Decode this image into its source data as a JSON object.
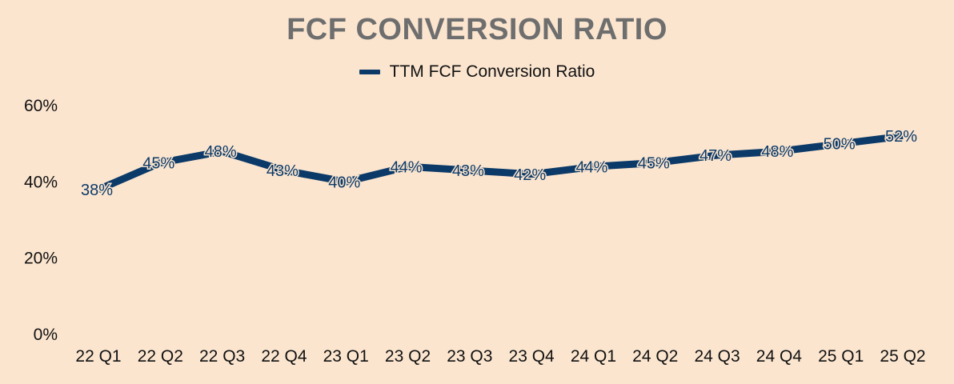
{
  "chart_data": {
    "type": "line",
    "title": "FCF CONVERSION RATIO",
    "xlabel": "",
    "ylabel": "",
    "categories": [
      "22 Q1",
      "22 Q2",
      "22 Q3",
      "22 Q4",
      "23 Q1",
      "23 Q2",
      "23 Q3",
      "23 Q4",
      "24 Q1",
      "24 Q2",
      "24 Q3",
      "24 Q4",
      "25 Q1",
      "25 Q2"
    ],
    "series": [
      {
        "name": "TTM FCF Conversion Ratio",
        "values": [
          38,
          45,
          48,
          43,
          40,
          44,
          43,
          42,
          44,
          45,
          47,
          48,
          50,
          52
        ],
        "data_labels": [
          "38%",
          "45%",
          "48%",
          "43%",
          "40%",
          "44%",
          "43%",
          "42%",
          "44%",
          "45%",
          "47%",
          "48%",
          "50%",
          "52%"
        ],
        "color": "#0C3A68"
      }
    ],
    "ylim": [
      0,
      60
    ],
    "yticks": [
      0,
      20,
      40,
      60
    ],
    "ytick_labels": [
      "0%",
      "20%",
      "40%",
      "60%"
    ],
    "grid": false,
    "legend_position": "top-center",
    "background_color": "#FBE5CF",
    "title_color": "#6E6E6E"
  }
}
